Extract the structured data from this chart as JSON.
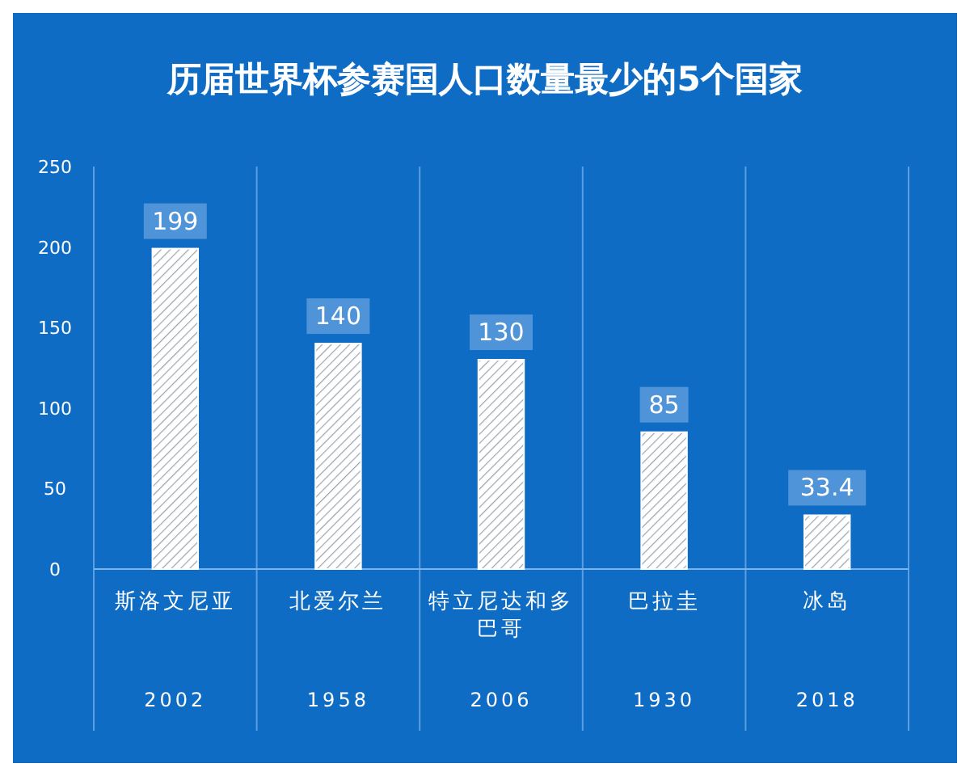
{
  "chart_data": {
    "type": "bar",
    "title": "历届世界杯参赛国人口数量最少的5个国家",
    "categories": [
      "斯洛文尼亚",
      "北爱尔兰",
      "特立尼达和多巴哥",
      "巴拉圭",
      "冰岛"
    ],
    "values": [
      199,
      140,
      130,
      85,
      33.4
    ],
    "color": "#ffffff",
    "data_labels": true,
    "ylim": [
      0,
      250
    ],
    "yticks": [
      0,
      50,
      100,
      150,
      200,
      250
    ],
    "grid": "x",
    "annotations": [
      "2002",
      "1958",
      "2006",
      "1930",
      "2018"
    ]
  }
}
